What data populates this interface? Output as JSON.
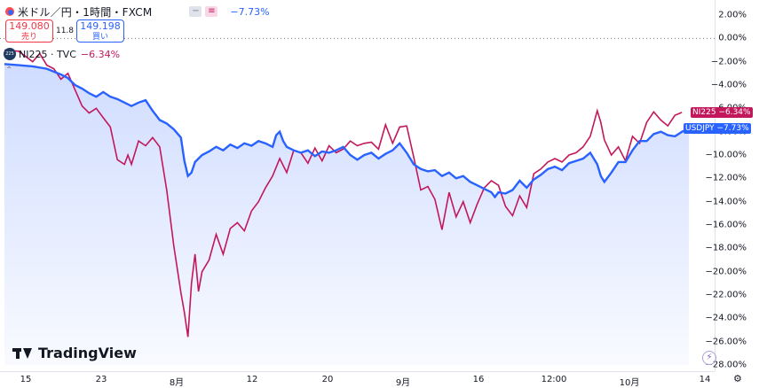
{
  "header": {
    "title": "米ドル／円・1時間・FXCM",
    "change": "−7.73%",
    "minus_icon": "−",
    "percent_icon": "≡"
  },
  "prices": {
    "sell_value": "149.080",
    "sell_label": "売り",
    "spread": "11.8",
    "buy_value": "149.198",
    "buy_label": "買い"
  },
  "compare": {
    "icon_text": "225",
    "label": "NI225 · TVC",
    "change": "−6.34%",
    "tick": "⌃"
  },
  "branding": {
    "logo_text": "TradingView"
  },
  "axis_tags": {
    "nikkei_name": "NI225",
    "nikkei_value": "−6.34%",
    "usd_name": "USDJPY",
    "usd_value": "−7.73%"
  },
  "chart_data": {
    "type": "line",
    "x_ticks": [
      "15",
      "23",
      "8月",
      "12",
      "20",
      "9月",
      "16",
      "12:00",
      "10月",
      "14"
    ],
    "y_ticks": [
      "2.00%",
      "0.00%",
      "−2.00%",
      "−4.00%",
      "−6.00%",
      "−8.00%",
      "−10.00%",
      "−12.00%",
      "−14.00%",
      "−16.00%",
      "−18.00%",
      "−20.00%",
      "−22.00%",
      "−24.00%",
      "−26.00%",
      "−28.00%"
    ],
    "ylim": [
      -28,
      2
    ],
    "x_range": [
      0,
      100
    ],
    "colors": {
      "usdjpy": "#2962ff",
      "nikkei": "#c2185b",
      "grid": "#787b86"
    },
    "series": [
      {
        "name": "USDJPY",
        "points": [
          [
            0,
            -2.2
          ],
          [
            2,
            -2.3
          ],
          [
            4,
            -2.4
          ],
          [
            6,
            -2.6
          ],
          [
            8,
            -3.1
          ],
          [
            9,
            -3.4
          ],
          [
            10,
            -4.0
          ],
          [
            11,
            -4.3
          ],
          [
            12,
            -4.7
          ],
          [
            13,
            -5.0
          ],
          [
            14,
            -4.6
          ],
          [
            15,
            -5.0
          ],
          [
            16,
            -5.2
          ],
          [
            17,
            -5.5
          ],
          [
            18,
            -5.8
          ],
          [
            19,
            -5.5
          ],
          [
            20,
            -5.3
          ],
          [
            21,
            -6.2
          ],
          [
            22,
            -7.0
          ],
          [
            23,
            -7.3
          ],
          [
            24,
            -7.8
          ],
          [
            25,
            -8.5
          ],
          [
            25.5,
            -10.5
          ],
          [
            26,
            -11.8
          ],
          [
            26.5,
            -11.5
          ],
          [
            27,
            -10.6
          ],
          [
            28,
            -10.0
          ],
          [
            29,
            -9.7
          ],
          [
            30,
            -9.3
          ],
          [
            31,
            -9.6
          ],
          [
            32,
            -9.1
          ],
          [
            33,
            -9.4
          ],
          [
            34,
            -9.0
          ],
          [
            35,
            -9.2
          ],
          [
            36,
            -8.8
          ],
          [
            37,
            -9.0
          ],
          [
            38,
            -9.3
          ],
          [
            38.5,
            -8.3
          ],
          [
            39,
            -8.0
          ],
          [
            39.5,
            -8.8
          ],
          [
            40,
            -9.3
          ],
          [
            41,
            -9.6
          ],
          [
            42,
            -9.8
          ],
          [
            43,
            -9.6
          ],
          [
            44,
            -10.1
          ],
          [
            45,
            -9.7
          ],
          [
            46,
            -9.8
          ],
          [
            47,
            -9.6
          ],
          [
            48,
            -9.3
          ],
          [
            49,
            -10.0
          ],
          [
            50,
            -10.4
          ],
          [
            51,
            -10.0
          ],
          [
            52,
            -9.8
          ],
          [
            53,
            -10.3
          ],
          [
            54,
            -9.9
          ],
          [
            55,
            -9.6
          ],
          [
            56,
            -9.0
          ],
          [
            57,
            -9.8
          ],
          [
            58,
            -10.8
          ],
          [
            59,
            -11.2
          ],
          [
            60,
            -11.4
          ],
          [
            61,
            -11.3
          ],
          [
            62,
            -11.8
          ],
          [
            63,
            -11.5
          ],
          [
            64,
            -12.0
          ],
          [
            65,
            -11.8
          ],
          [
            66,
            -12.3
          ],
          [
            67,
            -12.6
          ],
          [
            68,
            -12.9
          ],
          [
            69,
            -13.2
          ],
          [
            69.5,
            -13.6
          ],
          [
            70,
            -13.2
          ],
          [
            71,
            -13.3
          ],
          [
            72,
            -13.0
          ],
          [
            73,
            -12.2
          ],
          [
            74,
            -12.8
          ],
          [
            75,
            -12.1
          ],
          [
            76,
            -11.7
          ],
          [
            77,
            -11.2
          ],
          [
            78,
            -11.0
          ],
          [
            79,
            -11.3
          ],
          [
            80,
            -10.7
          ],
          [
            81,
            -10.5
          ],
          [
            82,
            -10.3
          ],
          [
            83,
            -9.8
          ],
          [
            84,
            -10.8
          ],
          [
            84.5,
            -11.8
          ],
          [
            85,
            -12.3
          ],
          [
            86,
            -11.5
          ],
          [
            87,
            -10.6
          ],
          [
            88,
            -10.6
          ],
          [
            89,
            -9.6
          ],
          [
            90,
            -8.8
          ],
          [
            91,
            -8.8
          ],
          [
            92,
            -8.2
          ],
          [
            93,
            -8.0
          ],
          [
            94,
            -8.3
          ],
          [
            95,
            -8.4
          ],
          [
            96,
            -8.0
          ],
          [
            97,
            -7.73
          ]
        ]
      },
      {
        "name": "NI225",
        "points": [
          [
            0,
            -1.0
          ],
          [
            2,
            -1.1
          ],
          [
            4,
            -2.0
          ],
          [
            5,
            -1.3
          ],
          [
            6,
            -2.3
          ],
          [
            7,
            -2.6
          ],
          [
            8,
            -3.5
          ],
          [
            9,
            -3.0
          ],
          [
            10,
            -4.4
          ],
          [
            11,
            -5.8
          ],
          [
            12,
            -6.4
          ],
          [
            13,
            -6.0
          ],
          [
            14,
            -6.8
          ],
          [
            15,
            -7.6
          ],
          [
            16,
            -10.4
          ],
          [
            17,
            -10.8
          ],
          [
            17.5,
            -10.0
          ],
          [
            18,
            -10.8
          ],
          [
            19,
            -8.8
          ],
          [
            20,
            -9.2
          ],
          [
            21,
            -8.5
          ],
          [
            22,
            -9.3
          ],
          [
            23,
            -13.0
          ],
          [
            24,
            -17.8
          ],
          [
            25,
            -21.8
          ],
          [
            25.5,
            -23.5
          ],
          [
            26,
            -25.6
          ],
          [
            26.5,
            -21.0
          ],
          [
            27,
            -18.5
          ],
          [
            27.5,
            -21.7
          ],
          [
            28,
            -20.0
          ],
          [
            29,
            -19.0
          ],
          [
            30,
            -16.8
          ],
          [
            31,
            -18.5
          ],
          [
            32,
            -16.3
          ],
          [
            33,
            -15.8
          ],
          [
            34,
            -16.5
          ],
          [
            35,
            -14.8
          ],
          [
            36,
            -14.0
          ],
          [
            37,
            -12.8
          ],
          [
            38,
            -11.8
          ],
          [
            39,
            -10.3
          ],
          [
            40,
            -11.5
          ],
          [
            41,
            -9.6
          ],
          [
            42,
            -9.8
          ],
          [
            43,
            -10.7
          ],
          [
            44,
            -9.4
          ],
          [
            45,
            -10.5
          ],
          [
            46,
            -9.2
          ],
          [
            47,
            -9.8
          ],
          [
            48,
            -9.5
          ],
          [
            49,
            -8.8
          ],
          [
            50,
            -9.2
          ],
          [
            51,
            -9.0
          ],
          [
            52,
            -8.9
          ],
          [
            53,
            -9.5
          ],
          [
            54,
            -7.4
          ],
          [
            55,
            -9.0
          ],
          [
            56,
            -7.6
          ],
          [
            57,
            -7.5
          ],
          [
            58,
            -10.2
          ],
          [
            59,
            -13.0
          ],
          [
            60,
            -12.7
          ],
          [
            61,
            -13.8
          ],
          [
            62,
            -16.4
          ],
          [
            63,
            -13.2
          ],
          [
            64,
            -15.3
          ],
          [
            65,
            -14.0
          ],
          [
            66,
            -15.8
          ],
          [
            67,
            -14.2
          ],
          [
            68,
            -12.8
          ],
          [
            69,
            -12.2
          ],
          [
            70,
            -12.6
          ],
          [
            71,
            -14.4
          ],
          [
            72,
            -15.2
          ],
          [
            73,
            -13.5
          ],
          [
            74,
            -14.5
          ],
          [
            75,
            -11.6
          ],
          [
            76,
            -11.2
          ],
          [
            77,
            -10.6
          ],
          [
            78,
            -10.3
          ],
          [
            79,
            -10.6
          ],
          [
            80,
            -10.0
          ],
          [
            81,
            -9.8
          ],
          [
            82,
            -9.3
          ],
          [
            83,
            -8.4
          ],
          [
            84,
            -6.2
          ],
          [
            84.5,
            -7.2
          ],
          [
            85,
            -8.7
          ],
          [
            86,
            -10.0
          ],
          [
            87,
            -9.3
          ],
          [
            88,
            -10.5
          ],
          [
            89,
            -8.4
          ],
          [
            90,
            -9.0
          ],
          [
            91,
            -7.2
          ],
          [
            92,
            -6.3
          ],
          [
            93,
            -7.0
          ],
          [
            94,
            -7.5
          ],
          [
            95,
            -6.6
          ],
          [
            96,
            -6.34
          ]
        ]
      }
    ]
  }
}
